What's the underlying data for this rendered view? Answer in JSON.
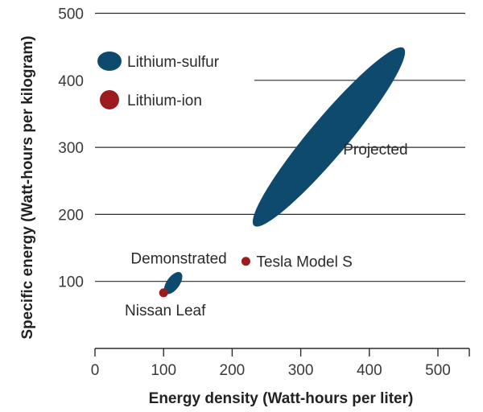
{
  "chart_data": {
    "type": "scatter",
    "title": "",
    "xlabel": "Energy density (Watt-hours per liter)",
    "ylabel": "Specific energy (Watt-hours per kilogram)",
    "xlim": [
      0,
      550
    ],
    "ylim": [
      0,
      500
    ],
    "xticks": [
      "0",
      "100",
      "200",
      "300",
      "400",
      "500"
    ],
    "yticks": [
      "100",
      "200",
      "300",
      "400",
      "500"
    ],
    "grid": true,
    "legend_position": "top-left",
    "legend": [
      {
        "label": "Lithium-sulfur",
        "color": "#0e4a6e"
      },
      {
        "label": "Lithium-ion",
        "color": "#9b1b1f"
      }
    ],
    "series": [
      {
        "name": "Lithium-sulfur",
        "color": "#0e4a6e",
        "regions": [
          {
            "label": "Demonstrated",
            "x_range": [
              103,
              125
            ],
            "y_range": [
              82,
              113
            ],
            "label_pos": "left"
          },
          {
            "label": "Projected",
            "x_range": [
              232,
              450
            ],
            "y_range": [
              183,
              448
            ],
            "label_pos": "right"
          }
        ]
      },
      {
        "name": "Lithium-ion",
        "color": "#9b1b1f",
        "points": [
          {
            "x": 100,
            "y": 83,
            "label": "Nissan Leaf"
          },
          {
            "x": 220,
            "y": 130,
            "label": "Tesla Model S"
          }
        ]
      }
    ]
  }
}
